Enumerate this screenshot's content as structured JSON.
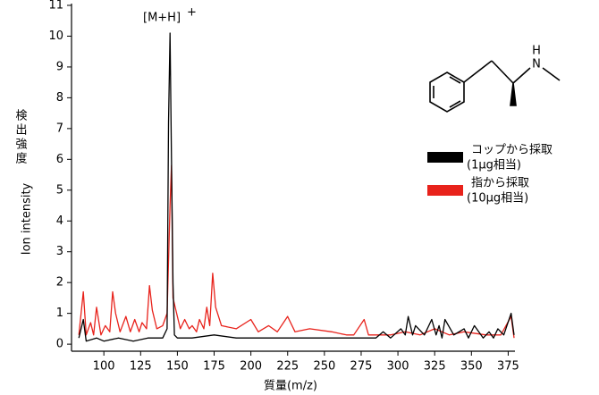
{
  "chart_data": {
    "type": "line",
    "annotation": {
      "text": "[M+H]",
      "superscript": "+"
    },
    "xlabel": "質量(m/z)",
    "ylabel": "Ion intensity",
    "ylabel_ja": "検出強度",
    "structure": {
      "atoms": [
        "H",
        "N"
      ]
    },
    "xlim": [
      78,
      379
    ],
    "xticks": [
      100,
      125,
      150,
      175,
      200,
      225,
      250,
      275,
      300,
      325,
      350,
      375
    ],
    "ylim": [
      -0.2,
      11
    ],
    "yticks": [
      0,
      1,
      2,
      3,
      4,
      5,
      6,
      7,
      8,
      9,
      10,
      11
    ],
    "series": [
      {
        "name": [
          "コップから採取",
          "(1μg相当)"
        ],
        "color": "#000000",
        "x": [
          83,
          86,
          88,
          95,
          100,
          110,
          120,
          130,
          140,
          143,
          144,
          145,
          146,
          147,
          148,
          150,
          160,
          175,
          190,
          210,
          230,
          250,
          270,
          285,
          290,
          295,
          302,
          305,
          307,
          310,
          312,
          318,
          323,
          326,
          328,
          330,
          332,
          338,
          345,
          348,
          352,
          358,
          362,
          365,
          368,
          372,
          377,
          379
        ],
        "values": [
          0.2,
          0.8,
          0.1,
          0.2,
          0.1,
          0.2,
          0.1,
          0.2,
          0.2,
          0.5,
          7.2,
          10.1,
          6.0,
          2.0,
          0.3,
          0.2,
          0.2,
          0.3,
          0.2,
          0.2,
          0.2,
          0.2,
          0.2,
          0.2,
          0.4,
          0.2,
          0.5,
          0.3,
          0.9,
          0.3,
          0.6,
          0.3,
          0.8,
          0.3,
          0.6,
          0.2,
          0.8,
          0.3,
          0.5,
          0.2,
          0.6,
          0.2,
          0.4,
          0.2,
          0.5,
          0.3,
          1.0,
          0.3
        ]
      },
      {
        "name": [
          "指から採取",
          "(10μg相当)"
        ],
        "color": "#e8221b",
        "x": [
          83,
          86,
          88,
          91,
          93,
          95,
          98,
          101,
          104,
          106,
          108,
          111,
          115,
          118,
          121,
          124,
          126,
          129,
          131,
          133,
          136,
          140,
          143,
          145,
          146,
          147,
          150,
          152,
          155,
          158,
          160,
          163,
          165,
          168,
          170,
          172,
          174,
          176,
          180,
          190,
          200,
          205,
          212,
          218,
          225,
          230,
          240,
          255,
          265,
          270,
          277,
          280,
          295,
          305,
          315,
          325,
          335,
          345,
          360,
          370,
          377,
          379
        ],
        "values": [
          0.3,
          1.7,
          0.3,
          0.7,
          0.3,
          1.2,
          0.3,
          0.6,
          0.4,
          1.7,
          1.0,
          0.4,
          0.9,
          0.4,
          0.8,
          0.4,
          0.7,
          0.5,
          1.9,
          1.1,
          0.5,
          0.6,
          1.0,
          4.5,
          5.8,
          1.5,
          0.9,
          0.5,
          0.8,
          0.5,
          0.6,
          0.4,
          0.8,
          0.5,
          1.2,
          0.6,
          2.3,
          1.2,
          0.6,
          0.5,
          0.8,
          0.4,
          0.6,
          0.4,
          0.9,
          0.4,
          0.5,
          0.4,
          0.3,
          0.3,
          0.8,
          0.3,
          0.3,
          0.4,
          0.3,
          0.5,
          0.3,
          0.4,
          0.3,
          0.3,
          0.9,
          0.2
        ]
      }
    ]
  }
}
